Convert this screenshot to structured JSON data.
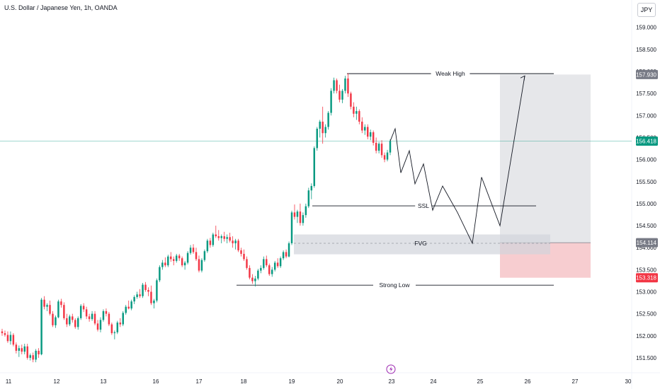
{
  "header": {
    "symbol_title": "U.S. Dollar / Japanese Yen, 1h, OANDA",
    "currency_button": "JPY"
  },
  "chart_data": {
    "type": "candlestick",
    "symbol": "USDJPY",
    "interval": "1h",
    "x_tick_labels": [
      "11",
      "12",
      "13",
      "16",
      "17",
      "18",
      "19",
      "20",
      "23",
      "24",
      "25",
      "26",
      "27",
      "30"
    ],
    "y_tick_labels": [
      151.5,
      152.0,
      152.5,
      153.0,
      153.5,
      154.0,
      154.5,
      155.0,
      155.5,
      156.0,
      156.5,
      157.0,
      157.5,
      158.0,
      158.5,
      159.0
    ],
    "ylim": [
      151.4,
      159.6
    ],
    "price_labels": [
      {
        "value": 157.93,
        "text": "157.930",
        "color": "#787b86"
      },
      {
        "value": 156.418,
        "text": "156.418",
        "color": "#089981"
      },
      {
        "value": 154.114,
        "text": "154.114",
        "color": "#787b86"
      },
      {
        "value": 153.318,
        "text": "153.318",
        "color": "#f23645"
      }
    ],
    "current_price": 156.418,
    "annotations": {
      "weak_high": {
        "label": "Weak High",
        "price": 157.95
      },
      "ssl": {
        "label": "SSL",
        "price": 154.95
      },
      "fvg": {
        "label": "FVG",
        "top": 154.3,
        "bottom": 153.85,
        "mid": 154.1
      },
      "strong_low": {
        "label": "Strong Low",
        "price": 153.15
      },
      "position": {
        "entry": 154.114,
        "target": 157.93,
        "stop": 153.318
      }
    },
    "projection_path": [
      [
        156.7
      ],
      [
        155.7
      ],
      [
        156.2
      ],
      [
        155.45
      ],
      [
        155.9
      ],
      [
        154.85
      ],
      [
        155.4
      ],
      [
        154.8
      ],
      [
        154.1
      ],
      [
        155.6
      ],
      [
        154.5
      ],
      [
        157.9
      ]
    ],
    "candles": [
      [
        152.1,
        152.16,
        152.0,
        152.06
      ],
      [
        152.06,
        152.12,
        151.98,
        152.02
      ],
      [
        152.02,
        152.1,
        151.84,
        151.88
      ],
      [
        151.88,
        152.1,
        151.8,
        152.02
      ],
      [
        152.02,
        152.06,
        151.76,
        151.8
      ],
      [
        151.8,
        151.85,
        151.6,
        151.66
      ],
      [
        151.66,
        151.78,
        151.52,
        151.72
      ],
      [
        151.72,
        151.8,
        151.58,
        151.64
      ],
      [
        151.64,
        151.82,
        151.58,
        151.76
      ],
      [
        151.76,
        151.82,
        151.46,
        151.5
      ],
      [
        151.5,
        151.6,
        151.44,
        151.56
      ],
      [
        151.56,
        151.62,
        151.4,
        151.46
      ],
      [
        151.46,
        151.7,
        151.4,
        151.66
      ],
      [
        151.66,
        151.72,
        151.5,
        151.58
      ],
      [
        151.58,
        152.86,
        151.56,
        152.82
      ],
      [
        152.82,
        152.9,
        152.6,
        152.66
      ],
      [
        152.66,
        152.74,
        152.56,
        152.7
      ],
      [
        152.7,
        152.8,
        152.46,
        152.5
      ],
      [
        152.5,
        152.56,
        152.2,
        152.24
      ],
      [
        152.24,
        152.46,
        152.18,
        152.42
      ],
      [
        152.42,
        152.82,
        152.4,
        152.78
      ],
      [
        152.78,
        152.84,
        152.64,
        152.7
      ],
      [
        152.7,
        152.76,
        152.36,
        152.4
      ],
      [
        152.4,
        152.5,
        152.2,
        152.26
      ],
      [
        152.26,
        152.48,
        152.22,
        152.44
      ],
      [
        152.44,
        152.5,
        152.3,
        152.36
      ],
      [
        152.36,
        152.4,
        152.16,
        152.2
      ],
      [
        152.2,
        152.44,
        152.14,
        152.4
      ],
      [
        152.4,
        152.72,
        152.36,
        152.68
      ],
      [
        152.68,
        152.74,
        152.54,
        152.6
      ],
      [
        152.6,
        152.66,
        152.38,
        152.44
      ],
      [
        152.44,
        152.5,
        152.32,
        152.38
      ],
      [
        152.38,
        152.56,
        152.34,
        152.5
      ],
      [
        152.5,
        152.56,
        152.24,
        152.28
      ],
      [
        152.28,
        152.36,
        152.1,
        152.14
      ],
      [
        152.14,
        152.42,
        152.08,
        152.36
      ],
      [
        152.36,
        152.6,
        152.32,
        152.56
      ],
      [
        152.56,
        152.62,
        152.44,
        152.5
      ],
      [
        152.5,
        152.54,
        152.22,
        152.26
      ],
      [
        152.26,
        152.3,
        152.02,
        152.06
      ],
      [
        152.06,
        152.12,
        151.92,
        152.08
      ],
      [
        152.08,
        152.34,
        152.04,
        152.3
      ],
      [
        152.3,
        152.4,
        152.2,
        152.26
      ],
      [
        152.26,
        152.56,
        152.22,
        152.52
      ],
      [
        152.52,
        152.7,
        152.48,
        152.66
      ],
      [
        152.66,
        152.8,
        152.6,
        152.62
      ],
      [
        152.62,
        152.82,
        152.58,
        152.78
      ],
      [
        152.78,
        152.92,
        152.72,
        152.88
      ],
      [
        152.88,
        153.0,
        152.84,
        152.94
      ],
      [
        152.94,
        153.06,
        152.86,
        152.9
      ],
      [
        152.9,
        153.2,
        152.86,
        153.16
      ],
      [
        153.16,
        153.22,
        153.0,
        153.04
      ],
      [
        153.04,
        153.1,
        152.9,
        153.0
      ],
      [
        153.0,
        153.14,
        152.7,
        152.74
      ],
      [
        152.74,
        152.84,
        152.62,
        152.8
      ],
      [
        152.8,
        153.3,
        152.76,
        153.26
      ],
      [
        153.26,
        153.6,
        153.22,
        153.56
      ],
      [
        153.56,
        153.72,
        153.5,
        153.66
      ],
      [
        153.66,
        153.78,
        153.56,
        153.6
      ],
      [
        153.6,
        153.84,
        153.56,
        153.8
      ],
      [
        153.8,
        153.9,
        153.68,
        153.74
      ],
      [
        153.74,
        153.8,
        153.6,
        153.7
      ],
      [
        153.7,
        153.86,
        153.66,
        153.82
      ],
      [
        153.82,
        153.86,
        153.7,
        153.76
      ],
      [
        153.76,
        153.8,
        153.56,
        153.6
      ],
      [
        153.6,
        153.7,
        153.5,
        153.66
      ],
      [
        153.66,
        153.92,
        153.62,
        153.88
      ],
      [
        153.88,
        154.06,
        153.84,
        154.0
      ],
      [
        154.0,
        154.08,
        153.86,
        153.9
      ],
      [
        153.9,
        154.0,
        153.7,
        153.74
      ],
      [
        153.74,
        153.82,
        153.44,
        153.48
      ],
      [
        153.48,
        153.76,
        153.44,
        153.72
      ],
      [
        153.72,
        153.96,
        153.68,
        153.92
      ],
      [
        153.92,
        154.2,
        153.88,
        154.16
      ],
      [
        154.16,
        154.22,
        154.0,
        154.06
      ],
      [
        154.06,
        154.34,
        154.02,
        154.3
      ],
      [
        154.3,
        154.5,
        154.22,
        154.26
      ],
      [
        154.26,
        154.4,
        154.16,
        154.22
      ],
      [
        154.22,
        154.3,
        154.1,
        154.26
      ],
      [
        154.26,
        154.36,
        154.14,
        154.2
      ],
      [
        154.2,
        154.3,
        154.1,
        154.24
      ],
      [
        154.24,
        154.34,
        154.12,
        154.16
      ],
      [
        154.16,
        154.26,
        154.0,
        154.1
      ],
      [
        154.1,
        154.2,
        153.96,
        154.16
      ],
      [
        154.16,
        154.2,
        153.9,
        153.94
      ],
      [
        153.94,
        154.0,
        153.8,
        153.86
      ],
      [
        153.86,
        153.96,
        153.7,
        153.74
      ],
      [
        153.74,
        153.8,
        153.5,
        153.54
      ],
      [
        153.54,
        153.6,
        153.28,
        153.32
      ],
      [
        153.32,
        153.4,
        153.18,
        153.24
      ],
      [
        153.24,
        153.36,
        153.12,
        153.3
      ],
      [
        153.3,
        153.52,
        153.26,
        153.48
      ],
      [
        153.48,
        153.6,
        153.42,
        153.54
      ],
      [
        153.54,
        153.8,
        153.5,
        153.74
      ],
      [
        153.74,
        153.82,
        153.56,
        153.6
      ],
      [
        153.6,
        153.64,
        153.36,
        153.4
      ],
      [
        153.4,
        153.56,
        153.34,
        153.5
      ],
      [
        153.5,
        153.7,
        153.46,
        153.66
      ],
      [
        153.66,
        153.76,
        153.54,
        153.58
      ],
      [
        153.58,
        153.8,
        153.54,
        153.76
      ],
      [
        153.76,
        153.94,
        153.72,
        153.9
      ],
      [
        153.9,
        153.96,
        153.76,
        153.8
      ],
      [
        153.8,
        154.14,
        153.78,
        154.1
      ],
      [
        154.1,
        154.84,
        154.06,
        154.8
      ],
      [
        154.8,
        154.98,
        154.64,
        154.7
      ],
      [
        154.7,
        154.86,
        154.56,
        154.82
      ],
      [
        154.82,
        155.0,
        154.5,
        154.56
      ],
      [
        154.56,
        154.8,
        154.5,
        154.74
      ],
      [
        154.74,
        155.0,
        154.68,
        154.94
      ],
      [
        154.94,
        155.36,
        154.9,
        155.3
      ],
      [
        155.3,
        155.46,
        155.1,
        155.4
      ],
      [
        155.4,
        156.3,
        155.36,
        156.26
      ],
      [
        156.26,
        156.74,
        156.2,
        156.7
      ],
      [
        156.7,
        156.9,
        156.5,
        156.86
      ],
      [
        156.86,
        157.2,
        156.36,
        156.6
      ],
      [
        156.6,
        156.8,
        156.5,
        156.74
      ],
      [
        156.74,
        157.1,
        156.68,
        157.06
      ],
      [
        157.06,
        157.62,
        157.0,
        157.56
      ],
      [
        157.56,
        157.86,
        157.5,
        157.8
      ],
      [
        157.8,
        157.84,
        157.5,
        157.56
      ],
      [
        157.56,
        157.7,
        157.3,
        157.36
      ],
      [
        157.36,
        157.6,
        157.28,
        157.56
      ],
      [
        157.56,
        157.9,
        157.5,
        157.84
      ],
      [
        157.84,
        157.96,
        157.42,
        157.5
      ],
      [
        157.5,
        157.54,
        157.14,
        157.2
      ],
      [
        157.2,
        157.3,
        156.96,
        157.04
      ],
      [
        157.04,
        157.2,
        156.9,
        157.1
      ],
      [
        157.1,
        157.14,
        156.8,
        156.86
      ],
      [
        156.86,
        156.96,
        156.6,
        156.66
      ],
      [
        156.66,
        156.8,
        156.56,
        156.74
      ],
      [
        156.74,
        156.8,
        156.46,
        156.52
      ],
      [
        156.52,
        156.68,
        156.44,
        156.62
      ],
      [
        156.62,
        156.66,
        156.32,
        156.38
      ],
      [
        156.38,
        156.5,
        156.14,
        156.2
      ],
      [
        156.2,
        156.4,
        156.14,
        156.36
      ],
      [
        156.36,
        156.44,
        156.04,
        156.1
      ],
      [
        156.1,
        156.16,
        155.94,
        156.0
      ],
      [
        156.0,
        156.22,
        155.96,
        156.16
      ],
      [
        156.16,
        156.46,
        156.1,
        156.42
      ]
    ]
  }
}
